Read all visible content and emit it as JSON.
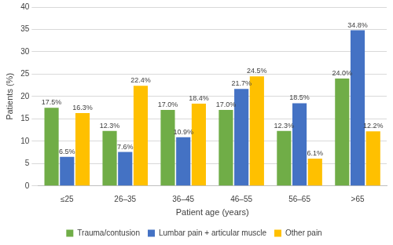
{
  "chart_data": {
    "type": "bar",
    "x_label": "Patient age (years)",
    "y_label": "Patients (%)",
    "categories": [
      "≤25",
      "26–35",
      "36–45",
      "46–55",
      "56–65",
      ">65"
    ],
    "series": [
      {
        "name": "Trauma/contusion",
        "color": "#70ad47",
        "values": [
          17.5,
          12.3,
          17.0,
          17.0,
          12.3,
          24.0
        ],
        "value_labels": [
          "17.5%",
          "12.3%",
          "17.0%",
          "17.0%",
          "12.3%",
          "24.0%"
        ]
      },
      {
        "name": "Lumbar pain + articular muscle",
        "color": "#4472c4",
        "values": [
          6.5,
          7.6,
          10.9,
          21.7,
          18.5,
          34.8
        ],
        "value_labels": [
          "6.5%",
          "7.6%",
          "10.9%",
          "21.7%",
          "18.5%",
          "34.8%"
        ]
      },
      {
        "name": "Other pain",
        "color": "#ffc000",
        "values": [
          16.3,
          22.4,
          18.4,
          24.5,
          6.1,
          12.2
        ],
        "value_labels": [
          "16.3%",
          "22.4%",
          "18.4%",
          "24.5%",
          "6.1%",
          "12.2%"
        ]
      }
    ],
    "ylim": [
      0,
      40
    ],
    "yticks": [
      0,
      5,
      10,
      15,
      20,
      25,
      30,
      35,
      40
    ],
    "grid": true,
    "legend": "bottom",
    "data_labels": true
  }
}
